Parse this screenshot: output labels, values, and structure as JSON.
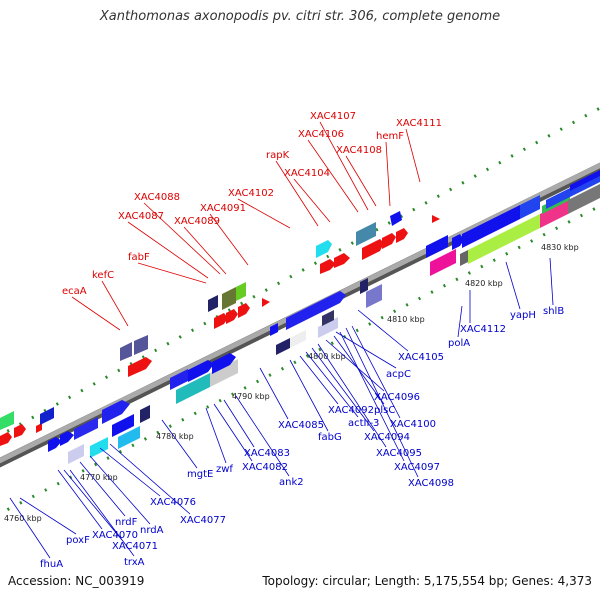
{
  "title": "Xanthomonas axonopodis pv. citri str. 306, complete genome",
  "accession": "Accession: NC_003919",
  "summary": "Topology: circular; Length: 5,175,554 bp; Genes: 4,373",
  "colors": {
    "forward_label": "#dd0000",
    "reverse_label": "#0000cc",
    "backbone": "#888888",
    "tick": "#2a8a2a"
  },
  "scale_labels": [
    "4760 kbp",
    "4770 kbp",
    "4780 kbp",
    "4790 kbp",
    "4800 kbp",
    "4810 kbp",
    "4820 kbp",
    "4830 kbp"
  ],
  "forward_genes": [
    "ecaA",
    "kefC",
    "fabF",
    "XAC4087",
    "XAC4088",
    "XAC4089",
    "XAC4091",
    "XAC4102",
    "rapK",
    "XAC4104",
    "XAC4106",
    "XAC4107",
    "XAC4108",
    "hemF",
    "XAC4111"
  ],
  "reverse_genes": [
    "fhuA",
    "poxF",
    "XAC4070",
    "XAC4071",
    "trxA",
    "nrdF",
    "nrdA",
    "XAC4076",
    "XAC4077",
    "mgtE",
    "zwf",
    "XAC4082",
    "XAC4083",
    "ank2",
    "XAC4085",
    "fabG",
    "XAC4092",
    "actII-3",
    "XAC4094",
    "XAC4095",
    "XAC4096",
    "plsC",
    "XAC4097",
    "XAC4098",
    "XAC4100",
    "acpC",
    "XAC4105",
    "polA",
    "XAC4112",
    "yapH",
    "shlB"
  ]
}
